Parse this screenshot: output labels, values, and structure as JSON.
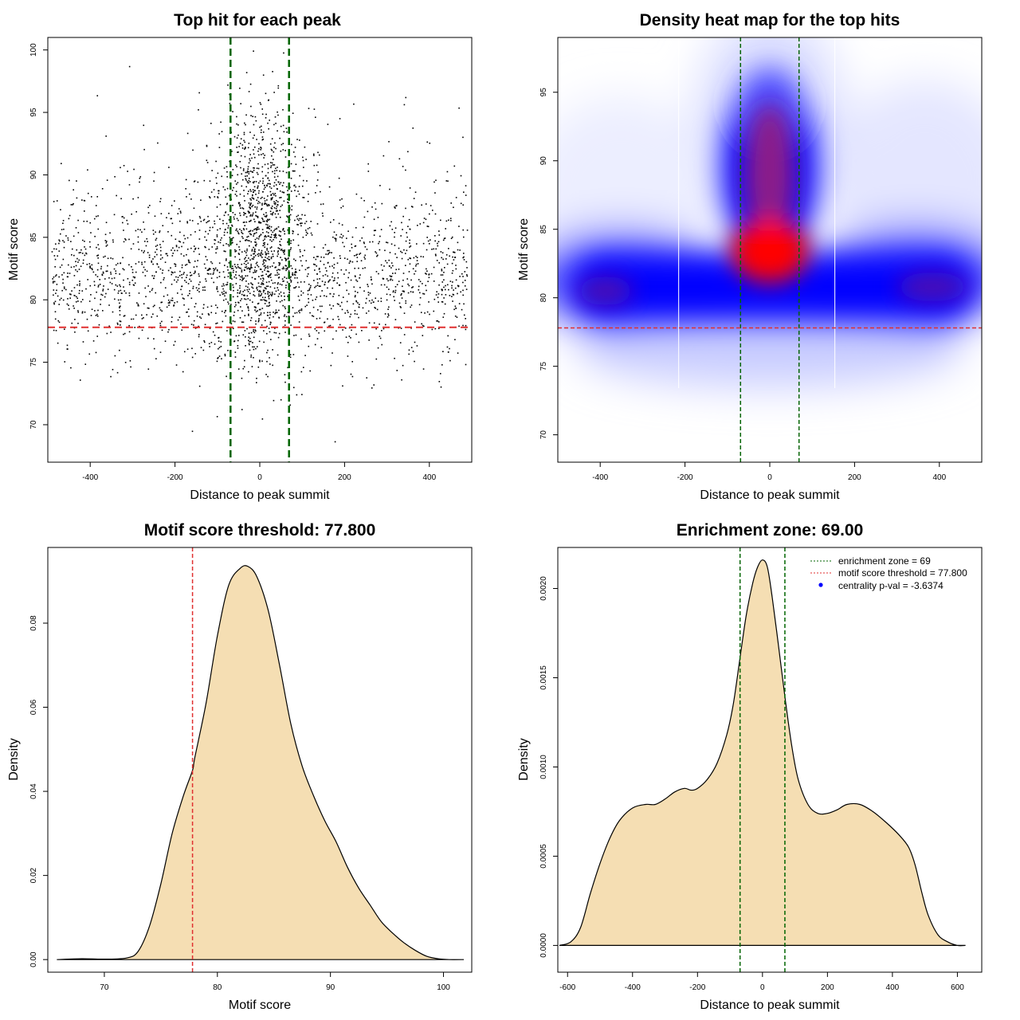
{
  "chart_data": [
    {
      "type": "scatter",
      "title": "Top hit for each peak",
      "xlabel": "Distance to peak summit",
      "ylabel": "Motif score",
      "xlim": [
        -500,
        500
      ],
      "ylim": [
        67,
        101
      ],
      "xticks": [
        -400,
        -200,
        0,
        200,
        400
      ],
      "yticks": [
        70,
        75,
        80,
        85,
        90,
        95,
        100
      ],
      "vlines": [
        -69,
        69
      ],
      "hline": 77.8,
      "grid": false,
      "colors": {
        "points": "#000000",
        "vlines": "#006400",
        "hline": "#e03030"
      }
    },
    {
      "type": "heatmap",
      "title": "Density heat map for the top hits",
      "xlabel": "Distance to peak summit",
      "ylabel": "Motif score",
      "xlim": [
        -500,
        500
      ],
      "ylim": [
        68,
        99
      ],
      "xticks": [
        -400,
        -200,
        0,
        200,
        400
      ],
      "yticks": [
        70,
        75,
        80,
        85,
        90,
        95
      ],
      "vlines": [
        -69,
        69
      ],
      "hline": 77.8,
      "grid": false,
      "colors": {
        "low": "#ffffff",
        "mid": "#0000ff",
        "high": "#ff0000",
        "vlines": "#006400",
        "hline": "#e03030"
      }
    },
    {
      "type": "area",
      "title": "Motif score threshold: 77.800",
      "xlabel": "Motif score",
      "ylabel": "Density",
      "xlim": [
        65,
        102.5
      ],
      "ylim": [
        -0.003,
        0.098
      ],
      "xticks": [
        70,
        80,
        90,
        100
      ],
      "yticks": [
        0.0,
        0.02,
        0.04,
        0.06,
        0.08
      ],
      "ytick_labels": [
        "0.00",
        "0.02",
        "0.04",
        "0.06",
        "0.08"
      ],
      "vline": 77.8,
      "x": [
        65.8,
        68,
        70,
        72,
        73,
        74,
        75,
        76,
        77,
        77.8,
        78,
        79,
        80,
        81,
        82,
        82.7,
        83.5,
        84.5,
        85.5,
        86.5,
        87.5,
        88.5,
        89.5,
        90.5,
        91.5,
        92.5,
        93.5,
        94.5,
        95.5,
        96.5,
        97.5,
        98.5,
        99.5,
        100.5,
        101.8
      ],
      "y": [
        0.0,
        0.0002,
        0.0001,
        0.0004,
        0.002,
        0.008,
        0.018,
        0.03,
        0.039,
        0.045,
        0.048,
        0.061,
        0.077,
        0.089,
        0.093,
        0.0935,
        0.091,
        0.083,
        0.07,
        0.056,
        0.046,
        0.039,
        0.033,
        0.028,
        0.022,
        0.017,
        0.013,
        0.009,
        0.0063,
        0.004,
        0.0022,
        0.0008,
        0.0002,
        0.0,
        0.0
      ],
      "grid": false,
      "colors": {
        "fill": "#f5deb3",
        "line": "#000000",
        "vline": "#e03030"
      }
    },
    {
      "type": "area",
      "title": "Enrichment zone: 69.00",
      "xlabel": "Distance to peak summit",
      "ylabel": "Density",
      "xlim": [
        -630,
        675
      ],
      "ylim": [
        -0.00015,
        0.00223
      ],
      "xticks": [
        -600,
        -400,
        -200,
        0,
        200,
        400,
        600
      ],
      "yticks": [
        0.0,
        0.0005,
        0.001,
        0.0015,
        0.002
      ],
      "ytick_labels": [
        "0.0000",
        "0.0005",
        "0.0010",
        "0.0015",
        "0.0020"
      ],
      "vlines": [
        -69,
        69
      ],
      "x": [
        -625,
        -590,
        -560,
        -530,
        -500,
        -470,
        -440,
        -400,
        -360,
        -330,
        -300,
        -270,
        -240,
        -220,
        -200,
        -170,
        -140,
        -110,
        -90,
        -70,
        -50,
        -30,
        -15,
        0,
        15,
        30,
        50,
        70,
        90,
        110,
        140,
        170,
        200,
        230,
        260,
        300,
        340,
        380,
        420,
        450,
        470,
        490,
        510,
        540,
        570,
        600,
        625
      ],
      "y": [
        0.0,
        2e-05,
        0.0001,
        0.00029,
        0.00046,
        0.0006,
        0.0007,
        0.00077,
        0.00079,
        0.00079,
        0.00082,
        0.00086,
        0.00088,
        0.00087,
        0.00088,
        0.00093,
        0.00102,
        0.00118,
        0.00135,
        0.0016,
        0.00185,
        0.00203,
        0.00212,
        0.00216,
        0.00212,
        0.00195,
        0.00167,
        0.00138,
        0.00112,
        0.00093,
        0.00079,
        0.00074,
        0.00074,
        0.00076,
        0.00079,
        0.00079,
        0.00075,
        0.00069,
        0.00062,
        0.00055,
        0.00045,
        0.0003,
        0.00017,
        6e-05,
        2e-05,
        0.0,
        0.0
      ],
      "legend": {
        "position": "top-right",
        "entries": [
          {
            "label": "enrichment zone = 69",
            "color": "#006400",
            "style": "dotted-line"
          },
          {
            "label": "motif score threshold = 77.800",
            "color": "#e03030",
            "style": "dotted-line"
          },
          {
            "label": "centrality p-val = -3.6374",
            "color": "#0000ff",
            "style": "point"
          }
        ]
      },
      "grid": false,
      "colors": {
        "fill": "#f5deb3",
        "line": "#000000",
        "vlines": "#006400"
      }
    }
  ]
}
